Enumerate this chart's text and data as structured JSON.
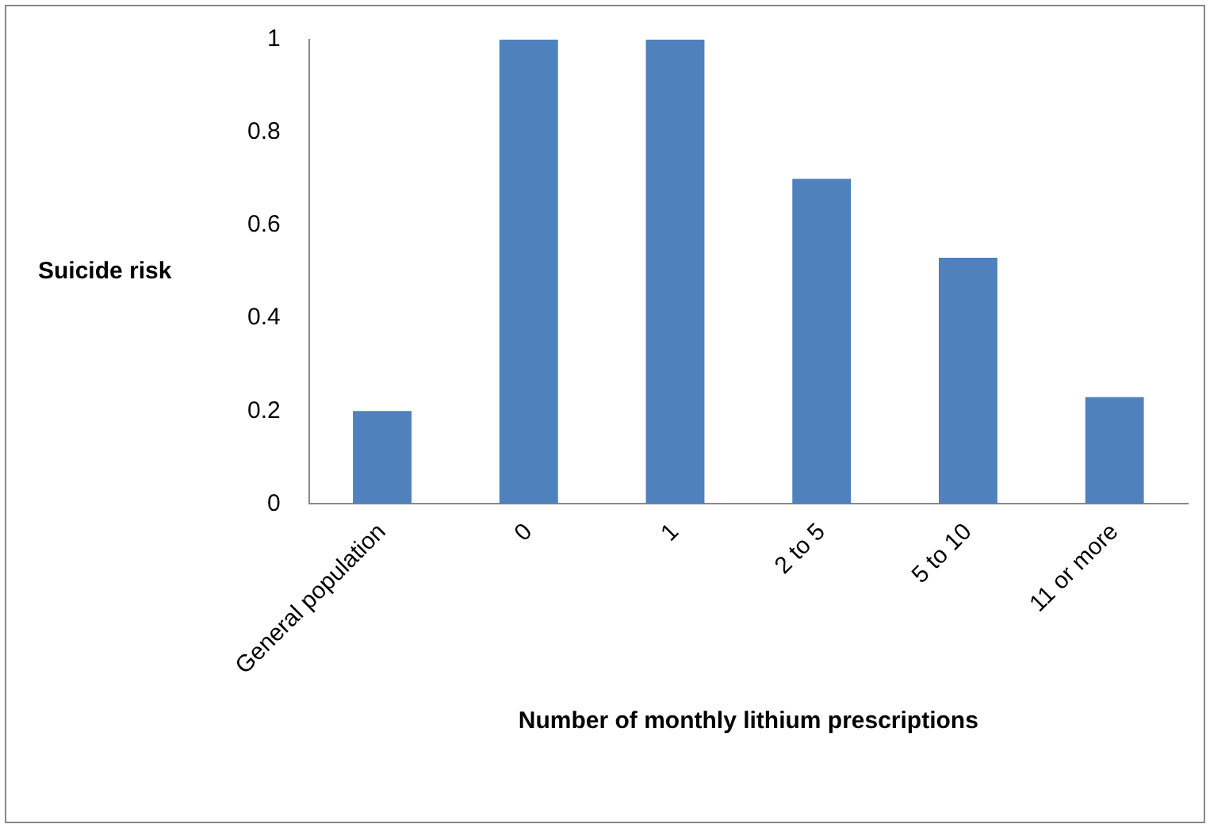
{
  "chart_data": {
    "type": "bar",
    "xlabel": "Number of monthly lithium prescriptions",
    "ylabel": "Suicide risk",
    "categories": [
      "General population",
      "0",
      "1",
      "2 to 5",
      "5 to 10",
      "11 or more"
    ],
    "values": [
      0.2,
      1,
      1,
      0.7,
      0.53,
      0.23
    ],
    "color": "#4f81bd",
    "ylim": [
      0,
      1
    ],
    "yticks": [
      0,
      0.2,
      0.4,
      0.6,
      0.8,
      1
    ],
    "grid": false,
    "legend": false
  }
}
